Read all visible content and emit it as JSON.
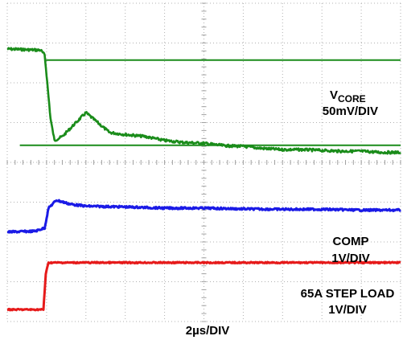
{
  "chart_data": {
    "type": "line",
    "title": "",
    "xlabel": "2µs/DIV",
    "x_divisions": 10,
    "y_divisions": 8,
    "grid": true,
    "series": [
      {
        "name": "VCORE",
        "label_main": "V",
        "label_sub": "CORE",
        "scale": "50mV/DIV",
        "color": "#1a8c1a",
        "unit": "div",
        "x": [
          0,
          0.85,
          0.95,
          1.0,
          1.1,
          1.2,
          1.4,
          1.7,
          2.0,
          2.3,
          2.6,
          3.0,
          3.5,
          4.0,
          4.5,
          5.0,
          5.5,
          6.0,
          6.5,
          7.0,
          7.5,
          8.0,
          8.5,
          9.0,
          9.5,
          10.0
        ],
        "y": [
          6.85,
          6.82,
          6.7,
          6.2,
          5.1,
          4.55,
          4.65,
          4.95,
          5.25,
          5.0,
          4.75,
          4.7,
          4.65,
          4.55,
          4.5,
          4.48,
          4.42,
          4.4,
          4.35,
          4.32,
          4.32,
          4.3,
          4.28,
          4.28,
          4.25,
          4.25
        ]
      },
      {
        "name": "COMP",
        "scale": "1V/DIV",
        "color": "#1a1ae6",
        "unit": "div",
        "x": [
          0,
          0.7,
          0.95,
          1.05,
          1.25,
          1.6,
          2.0,
          3.0,
          4.0,
          5.0,
          6.0,
          7.0,
          8.0,
          9.0,
          10.0
        ],
        "y": [
          2.25,
          2.27,
          2.35,
          2.85,
          3.05,
          2.95,
          2.9,
          2.88,
          2.85,
          2.85,
          2.83,
          2.82,
          2.82,
          2.8,
          2.8
        ]
      },
      {
        "name": "65A STEP LOAD",
        "scale": "1V/DIV",
        "color": "#e61a1a",
        "unit": "div",
        "x": [
          0,
          0.85,
          0.92,
          0.98,
          1.05,
          10.0
        ],
        "y": [
          0.3,
          0.3,
          0.3,
          1.2,
          1.48,
          1.48
        ]
      }
    ],
    "markers": [
      {
        "name": "upper-limit-line",
        "y": 6.57,
        "x_start": 0.95,
        "x_end": 10.0,
        "color": "#1a8c1a"
      },
      {
        "name": "lower-limit-line",
        "y": 4.43,
        "x_start": 0.32,
        "x_end": 10.0,
        "color": "#1a8c1a"
      }
    ],
    "labels": {
      "comp": "COMP",
      "comp_scale": "1V/DIV",
      "step_load": "65A STEP LOAD",
      "step_load_scale": "1V/DIV"
    }
  }
}
